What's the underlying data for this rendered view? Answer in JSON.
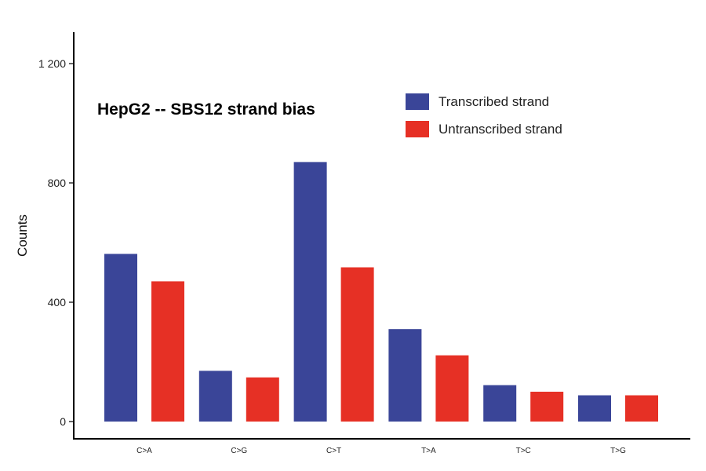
{
  "chart_data": {
    "type": "bar",
    "title": "HepG2 -- SBS12 strand bias",
    "xlabel": "",
    "ylabel": "Counts",
    "categories": [
      "C>A",
      "C>G",
      "C>T",
      "T>A",
      "T>C",
      "T>G"
    ],
    "series": [
      {
        "name": "Transcribed strand",
        "color": "#3a4598",
        "values": [
          562,
          170,
          870,
          310,
          122,
          88
        ]
      },
      {
        "name": "Untranscribed strand",
        "color": "#e63025",
        "values": [
          470,
          148,
          517,
          222,
          100,
          88
        ]
      }
    ],
    "ylim": [
      0,
      1200
    ],
    "yticks": [
      0,
      400,
      800,
      1200
    ],
    "ytick_labels": [
      "0",
      "400",
      "800",
      "1 200"
    ],
    "grid": false,
    "legend_position": "top-right"
  }
}
